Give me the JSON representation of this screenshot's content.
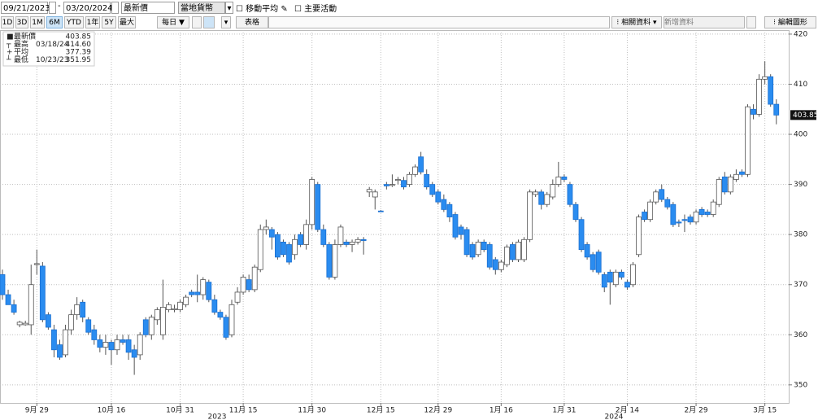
{
  "toolbar": {
    "start_date": "09/21/2023",
    "date_separator": "-",
    "end_date": "03/20/2024",
    "field": "最新價",
    "currency": "當地貨幣",
    "options": [
      "移動平均",
      "主要活動"
    ],
    "ranges": [
      "1D",
      "3D",
      "1M",
      "6M",
      "YTD",
      "1年",
      "5Y",
      "最大"
    ],
    "period": "每日",
    "table": "表格",
    "related": "相關資料",
    "add_data": "新增資料",
    "edit": "編輯圖形"
  },
  "chart_data": {
    "type": "candlestick",
    "categories": [
      null,
      null,
      null,
      null,
      null,
      null,
      "9月 29",
      null,
      null,
      null,
      null,
      null,
      null,
      null,
      null,
      null,
      null,
      null,
      null,
      "10月 16",
      null,
      null,
      null,
      null,
      null,
      null,
      null,
      null,
      null,
      null,
      null,
      "10月 31",
      null,
      null,
      null,
      null,
      null,
      null,
      null,
      null,
      null,
      null,
      "11月 15",
      null,
      null,
      null,
      null,
      null,
      null,
      null,
      null,
      null,
      null,
      null,
      "11月 30",
      null,
      null,
      null,
      null,
      null,
      null,
      null,
      null,
      null,
      null,
      null,
      "12月 15",
      null,
      null,
      null,
      null,
      null,
      null,
      null,
      null,
      null,
      "12月 29",
      null,
      null,
      null,
      null,
      null,
      null,
      null,
      null,
      null,
      null,
      "1月 16",
      null,
      null,
      null,
      null,
      null,
      null,
      null,
      null,
      null,
      null,
      "1月 31",
      null,
      null,
      null,
      null,
      null,
      null,
      null,
      null,
      null,
      null,
      "2月 14",
      null,
      null,
      null,
      null,
      null,
      null,
      null,
      null,
      null,
      null,
      null,
      "2月 29",
      null,
      null,
      null,
      null,
      null,
      null,
      null,
      null,
      null,
      null,
      null,
      "3月 15",
      null,
      null
    ],
    "year_labels": [
      "2023",
      "2024"
    ],
    "series": [
      {
        "name": "最新價",
        "up_color": "#ffffff",
        "down_color": "#2a8cf0",
        "open": [
          372,
          368,
          366,
          362,
          362,
          362,
          374,
          373.7,
          364,
          361,
          358,
          356,
          361,
          364,
          366.5,
          363,
          361,
          359,
          357.5,
          358.5,
          357,
          359,
          359,
          357,
          356,
          363,
          360,
          363,
          360,
          365,
          365,
          365,
          366,
          368.5,
          368.5,
          368,
          370.5,
          367,
          364.5,
          363.5,
          360,
          366.5,
          368.5,
          371,
          369,
          373,
          381,
          381,
          380,
          378.5,
          378,
          376,
          380,
          378,
          382,
          390,
          381,
          378,
          371.5,
          378,
          378.5,
          378,
          378.5,
          379,
          388.5,
          387.5,
          384.7,
          390,
          389.8,
          390.8,
          390.8,
          390,
          392,
          395.5,
          392,
          390,
          388.5,
          387,
          386,
          384,
          381.5,
          381,
          378,
          376,
          378.5,
          378,
          375,
          373,
          374,
          378,
          375,
          375,
          379,
          388,
          388.5,
          386,
          387.5,
          390,
          391.5,
          390,
          386,
          383,
          378,
          376,
          376.5,
          372,
          372.5,
          370,
          372.5,
          370.5,
          370,
          376,
          384.5,
          383,
          386.5,
          389,
          387,
          386,
          382.5,
          383,
          383.5,
          382.5,
          385,
          384.5,
          384,
          386,
          391.5,
          388.5,
          391,
          392.5,
          392,
          405,
          404,
          411,
          411.5,
          406
        ],
        "high": [
          373,
          369,
          367,
          362.8,
          362.8,
          374,
          377,
          374.5,
          364.5,
          362,
          359,
          362,
          365,
          367.5,
          367,
          363.5,
          362,
          360,
          360,
          359,
          360,
          360,
          360,
          358,
          360.5,
          363.5,
          364,
          365.5,
          371,
          366.5,
          366,
          367,
          368,
          369,
          372,
          371.5,
          371,
          368,
          365,
          364,
          367,
          369.5,
          372,
          372,
          374,
          382,
          383,
          381.5,
          380.5,
          379,
          378.5,
          380,
          380.5,
          383,
          391.5,
          390.5,
          382,
          378.5,
          379,
          382,
          379,
          379,
          379.5,
          379.5,
          389.5,
          389,
          384.9,
          390.5,
          392,
          391.5,
          391.5,
          392.5,
          394,
          396.5,
          393,
          390.5,
          389,
          388,
          386.5,
          384.5,
          382,
          381.5,
          378.5,
          379,
          379,
          378.5,
          375.5,
          375,
          378,
          378.5,
          379,
          379.5,
          389,
          389,
          389,
          388.5,
          391,
          394.5,
          392,
          390.5,
          386.5,
          383.5,
          378.5,
          376.5,
          377,
          372.5,
          373,
          373,
          373,
          371,
          374.5,
          384,
          385,
          387,
          389,
          390,
          387.5,
          386.5,
          383,
          384,
          384,
          385,
          385.5,
          385,
          387,
          391.5,
          392.5,
          392,
          393,
          393,
          406,
          406,
          412,
          414.6,
          412,
          407
        ],
        "low": [
          367,
          366,
          364,
          361.5,
          361.8,
          360,
          372,
          362.5,
          361,
          355.5,
          355,
          355.5,
          360,
          363,
          362.5,
          360,
          358,
          356.5,
          356,
          354,
          356,
          358,
          355,
          352,
          355,
          359.5,
          359,
          362,
          359,
          364.5,
          364.5,
          364.5,
          365.5,
          367.5,
          366.5,
          367,
          366.5,
          364,
          363,
          359,
          359.5,
          366,
          368,
          368.5,
          368.5,
          372.5,
          380,
          377,
          375,
          375.5,
          374,
          375,
          377.5,
          377,
          381,
          380.5,
          377.5,
          371,
          371,
          377.5,
          377.5,
          376.5,
          378,
          376,
          387.5,
          385,
          384.5,
          389,
          389.5,
          390,
          389,
          389.5,
          391.5,
          392,
          389,
          387.5,
          386,
          384.5,
          382.5,
          379,
          379,
          375.5,
          375,
          375.5,
          376.5,
          373,
          372,
          372.5,
          373.5,
          374.5,
          374.5,
          374.5,
          378.5,
          387.5,
          385,
          385.5,
          387,
          389.5,
          390.5,
          385.5,
          382.5,
          376.5,
          375,
          372.5,
          372,
          368.5,
          366,
          369.5,
          371,
          369,
          369.5,
          375.5,
          382.5,
          382.5,
          386,
          386.5,
          385,
          381.5,
          381.5,
          380.5,
          382,
          382,
          383.5,
          383.5,
          383.5,
          385.5,
          388,
          388,
          390.5,
          391.5,
          391.5,
          403,
          403.5,
          410,
          405.5,
          402
        ],
        "close": [
          368,
          366,
          364.5,
          362.5,
          362.3,
          370,
          374.2,
          363,
          361.5,
          357,
          355.5,
          361,
          364,
          366,
          363.5,
          360.5,
          359,
          357.5,
          358.5,
          357,
          359,
          358.5,
          356.5,
          355.5,
          360,
          360,
          363.5,
          365,
          365.5,
          366,
          365.2,
          366.5,
          367.5,
          368,
          368,
          371,
          367,
          364.5,
          363.5,
          359.5,
          366,
          368.5,
          371.5,
          369,
          373.5,
          381,
          381.5,
          379.5,
          375.5,
          376,
          374.5,
          379,
          378,
          382,
          391,
          381,
          378,
          371.5,
          378,
          381.5,
          378,
          378.5,
          379,
          378.8,
          389,
          388.5,
          384.6,
          389.7,
          390,
          391,
          389.5,
          392,
          393.5,
          392.5,
          389.5,
          388,
          386.5,
          385,
          383.5,
          379.5,
          380,
          376,
          375.5,
          378.5,
          377,
          373.5,
          373,
          374.5,
          377.5,
          375,
          378.5,
          379,
          388.5,
          388.5,
          386,
          388,
          390,
          391.5,
          391,
          386,
          383,
          377,
          375.5,
          373,
          372.5,
          369.5,
          370.5,
          372.5,
          371.5,
          369.5,
          374,
          383.5,
          383,
          386.5,
          388.5,
          387,
          385.5,
          382,
          382.3,
          382.8,
          382.5,
          384.5,
          384,
          384,
          386.5,
          391,
          388.5,
          391.5,
          392,
          392,
          405.5,
          404,
          411,
          411.5,
          406,
          403.85
        ]
      }
    ],
    "legend": [
      {
        "name": "最新價",
        "text": "403.85"
      },
      {
        "name": "最高",
        "date": "03/18/24",
        "text": "414.60"
      },
      {
        "name": "平均",
        "text": "377.39"
      },
      {
        "name": "最低",
        "date": "10/23/23",
        "text": "351.95"
      }
    ],
    "ylim": [
      346.4,
      420.8
    ],
    "yticks": [
      350,
      360,
      370,
      380,
      390,
      400,
      410,
      420
    ],
    "grid": true
  }
}
